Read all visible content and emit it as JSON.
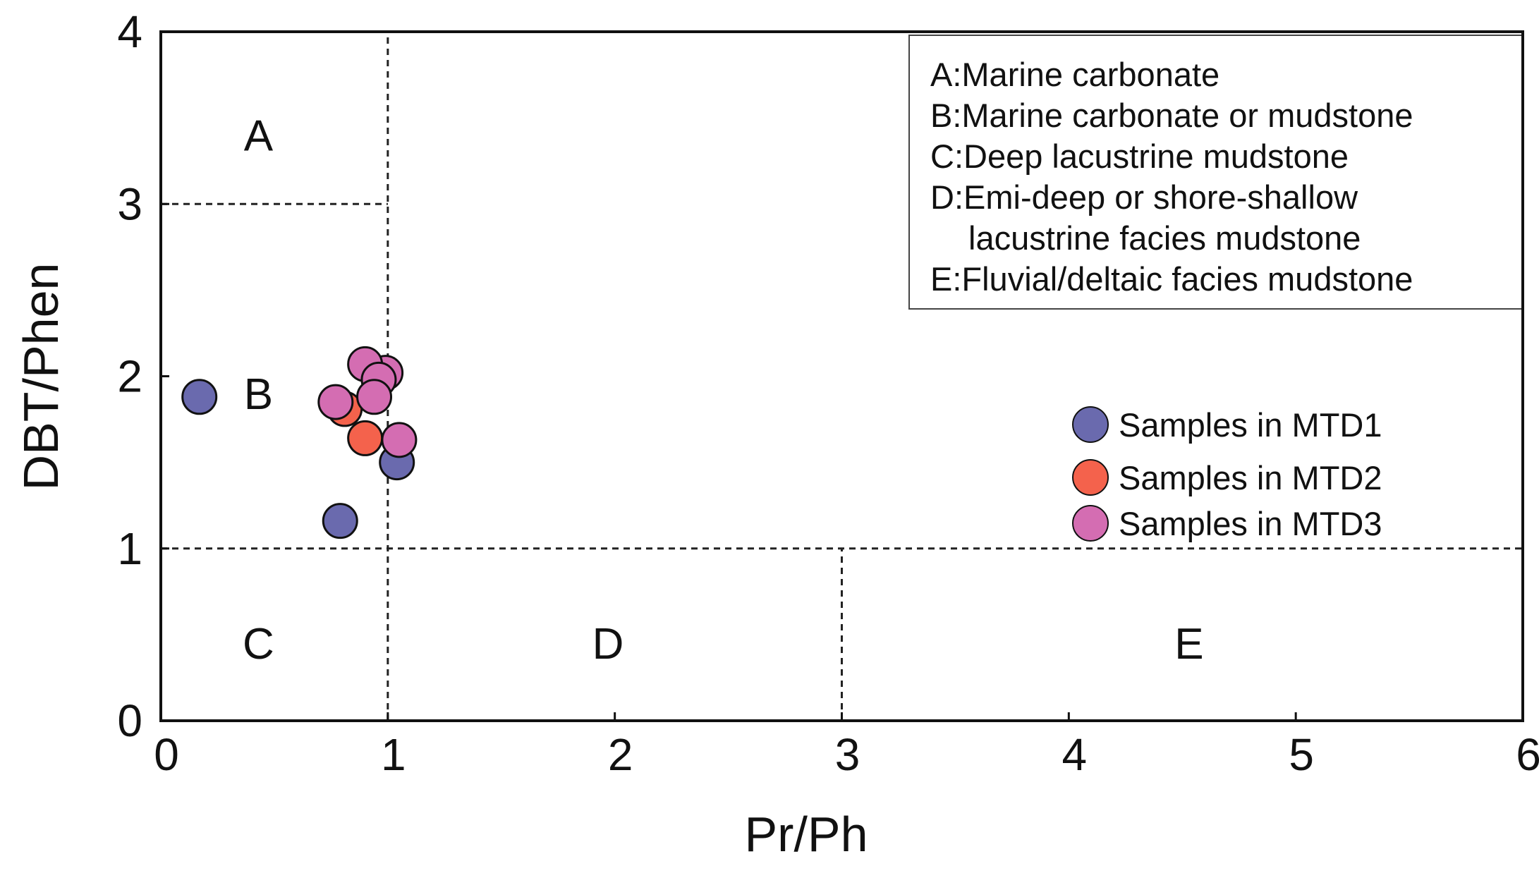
{
  "chart_data": {
    "type": "scatter",
    "title": "",
    "xlabel": "Pr/Ph",
    "ylabel": "DBT/Phen",
    "xlim": [
      0,
      6
    ],
    "ylim": [
      0,
      4
    ],
    "x_ticks": [
      "0",
      "1",
      "2",
      "3",
      "4",
      "5",
      "6"
    ],
    "y_ticks": [
      "0",
      "1",
      "2",
      "3",
      "4"
    ],
    "grid": false,
    "boundaries": [
      {
        "orientation": "vertical",
        "x": 1,
        "y_from": 0,
        "y_to": 4
      },
      {
        "orientation": "horizontal",
        "y": 3,
        "x_from": 0,
        "x_to": 1
      },
      {
        "orientation": "horizontal",
        "y": 1,
        "x_from": 0,
        "x_to": 6
      },
      {
        "orientation": "vertical",
        "x": 3,
        "y_from": 0,
        "y_to": 1
      }
    ],
    "regions": [
      {
        "label": "A",
        "x": 0.43,
        "y": 3.4
      },
      {
        "label": "B",
        "x": 0.43,
        "y": 1.9
      },
      {
        "label": "C",
        "x": 0.43,
        "y": 0.45
      },
      {
        "label": "D",
        "x": 1.97,
        "y": 0.45
      },
      {
        "label": "E",
        "x": 4.53,
        "y": 0.45
      }
    ],
    "region_legend": {
      "position": "top-right",
      "entries": [
        "A:Marine carbonate",
        "B:Marine carbonate or mudstone",
        "C:Deep lacustrine mudstone",
        "D:Emi-deep or shore-shallow",
        "lacustrine facies mudstone",
        "E:Fluvial/deltaic facies mudstone"
      ]
    },
    "legend_position": "right",
    "series": [
      {
        "name": "Samples in MTD1",
        "color": "#6a6aae",
        "points": [
          {
            "x": 0.17,
            "y": 1.88
          },
          {
            "x": 1.04,
            "y": 1.5
          },
          {
            "x": 0.79,
            "y": 1.16
          }
        ]
      },
      {
        "name": "Samples in MTD2",
        "color": "#f4624c",
        "points": [
          {
            "x": 0.81,
            "y": 1.81
          },
          {
            "x": 0.9,
            "y": 1.64
          }
        ]
      },
      {
        "name": "Samples in MTD3",
        "color": "#d46db2",
        "points": [
          {
            "x": 0.99,
            "y": 2.02
          },
          {
            "x": 0.9,
            "y": 2.07
          },
          {
            "x": 0.96,
            "y": 1.98
          },
          {
            "x": 0.94,
            "y": 1.88
          },
          {
            "x": 0.77,
            "y": 1.85
          },
          {
            "x": 1.05,
            "y": 1.63
          }
        ]
      }
    ]
  }
}
